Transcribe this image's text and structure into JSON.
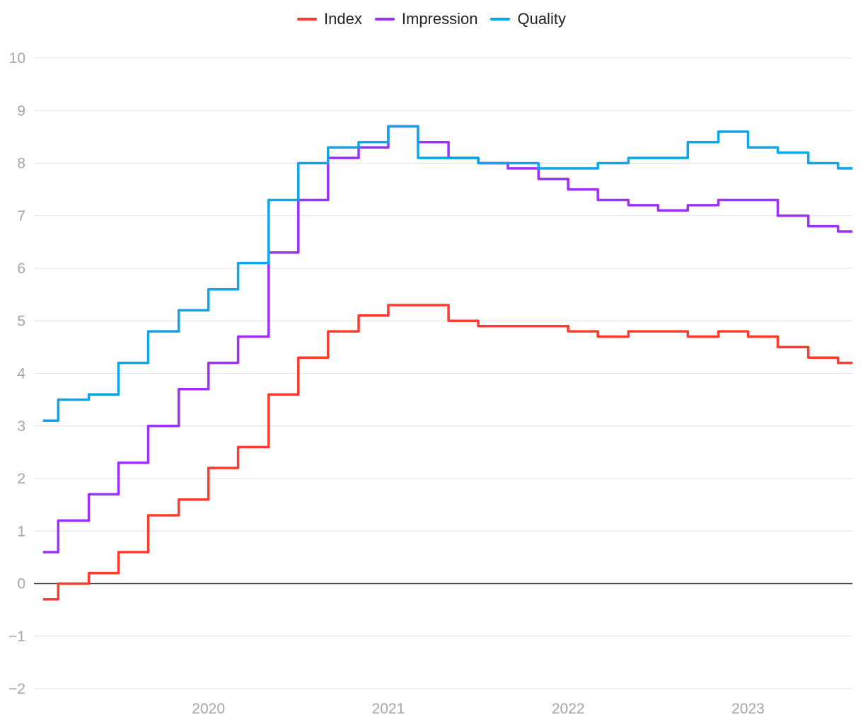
{
  "chart_data": {
    "type": "line",
    "title": "",
    "xlabel": "",
    "ylabel": "",
    "ylim": [
      -2,
      10
    ],
    "y_ticks": [
      "−2",
      "−1",
      "0",
      "1",
      "2",
      "3",
      "4",
      "5",
      "6",
      "7",
      "8",
      "9",
      "10"
    ],
    "y_tick_values": [
      -2,
      -1,
      0,
      1,
      2,
      3,
      4,
      5,
      6,
      7,
      8,
      9,
      10
    ],
    "x_ticks": [
      "2020",
      "2021",
      "2022",
      "2023"
    ],
    "x_tick_values": [
      2020,
      2021,
      2022,
      2023
    ],
    "xlim": [
      2019.03,
      2023.58
    ],
    "grid": true,
    "legend_position": "top-center",
    "x": [
      2019.08,
      2019.25,
      2019.42,
      2019.58,
      2019.75,
      2019.92,
      2020.08,
      2020.25,
      2020.42,
      2020.58,
      2020.75,
      2020.92,
      2021.08,
      2021.25,
      2021.42,
      2021.58,
      2021.75,
      2021.92,
      2022.08,
      2022.25,
      2022.42,
      2022.58,
      2022.75,
      2022.92,
      2023.08,
      2023.25,
      2023.42,
      2023.58
    ],
    "series": [
      {
        "name": "Index",
        "color": "#ff3b30",
        "values": [
          -0.3,
          0.0,
          0.2,
          0.6,
          1.3,
          1.6,
          2.2,
          2.6,
          3.6,
          4.3,
          4.8,
          5.1,
          5.3,
          5.3,
          5.0,
          4.9,
          4.9,
          4.9,
          4.8,
          4.7,
          4.8,
          4.8,
          4.7,
          4.8,
          4.7,
          4.5,
          4.3,
          4.2
        ]
      },
      {
        "name": "Impression",
        "color": "#9b30ff",
        "values": [
          0.6,
          1.2,
          1.7,
          2.3,
          3.0,
          3.7,
          4.2,
          4.7,
          6.3,
          7.3,
          8.1,
          8.3,
          8.7,
          8.4,
          8.1,
          8.0,
          7.9,
          7.7,
          7.5,
          7.3,
          7.2,
          7.1,
          7.2,
          7.3,
          7.3,
          7.0,
          6.8,
          6.7
        ]
      },
      {
        "name": "Quality",
        "color": "#0ea5e9",
        "values": [
          3.1,
          3.5,
          3.6,
          4.2,
          4.8,
          5.2,
          5.6,
          6.1,
          7.3,
          8.0,
          8.3,
          8.4,
          8.7,
          8.1,
          8.1,
          8.0,
          8.0,
          7.9,
          7.9,
          8.0,
          8.1,
          8.1,
          8.4,
          8.6,
          8.3,
          8.2,
          8.0,
          7.9
        ]
      }
    ]
  }
}
